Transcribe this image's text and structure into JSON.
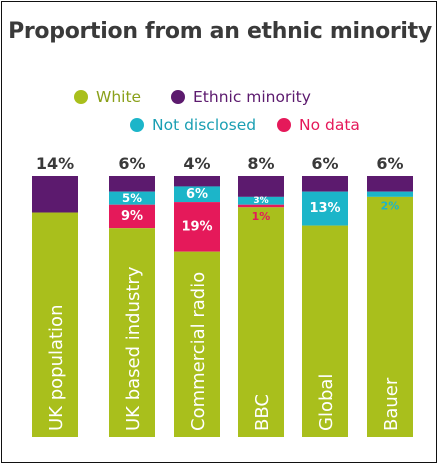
{
  "chart_data": {
    "type": "bar",
    "stacked": true,
    "title": "Proportion from an ethnic minority",
    "categories": [
      "UK population",
      "UK based industry",
      "Commercial radio",
      "BBC",
      "Global",
      "Bauer"
    ],
    "series": [
      {
        "name": "Ethnic minority",
        "color": "#5c1a6e",
        "values": [
          14,
          6,
          4,
          8,
          6,
          6
        ],
        "labels": [
          "14%",
          "6%",
          "4%",
          "8%",
          "6%",
          "6%"
        ]
      },
      {
        "name": "Not disclosed",
        "color": "#1cb5c9",
        "values": [
          0,
          5,
          6,
          3,
          13,
          2
        ],
        "labels": [
          "",
          "5%",
          "6%",
          "3%",
          "13%",
          "2%"
        ]
      },
      {
        "name": "No data",
        "color": "#e5195a",
        "values": [
          0,
          9,
          19,
          1,
          0,
          0
        ],
        "labels": [
          "",
          "9%",
          "19%",
          "1%",
          "",
          ""
        ]
      },
      {
        "name": "White",
        "color": "#a9bf1c",
        "values": [
          86,
          80,
          71,
          88,
          81,
          92
        ]
      }
    ],
    "ylim": [
      0,
      100
    ],
    "legend": {
      "position": "top",
      "items": [
        {
          "name": "White",
          "color": "#a9bf1c",
          "text_color": "#8aa01a"
        },
        {
          "name": "Ethnic minority",
          "color": "#5c1a6e",
          "text_color": "#5c1a6e"
        },
        {
          "name": "Not disclosed",
          "color": "#1cb5c9",
          "text_color": "#1a9fb3"
        },
        {
          "name": "No data",
          "color": "#e5195a",
          "text_color": "#e5195a"
        }
      ]
    }
  }
}
